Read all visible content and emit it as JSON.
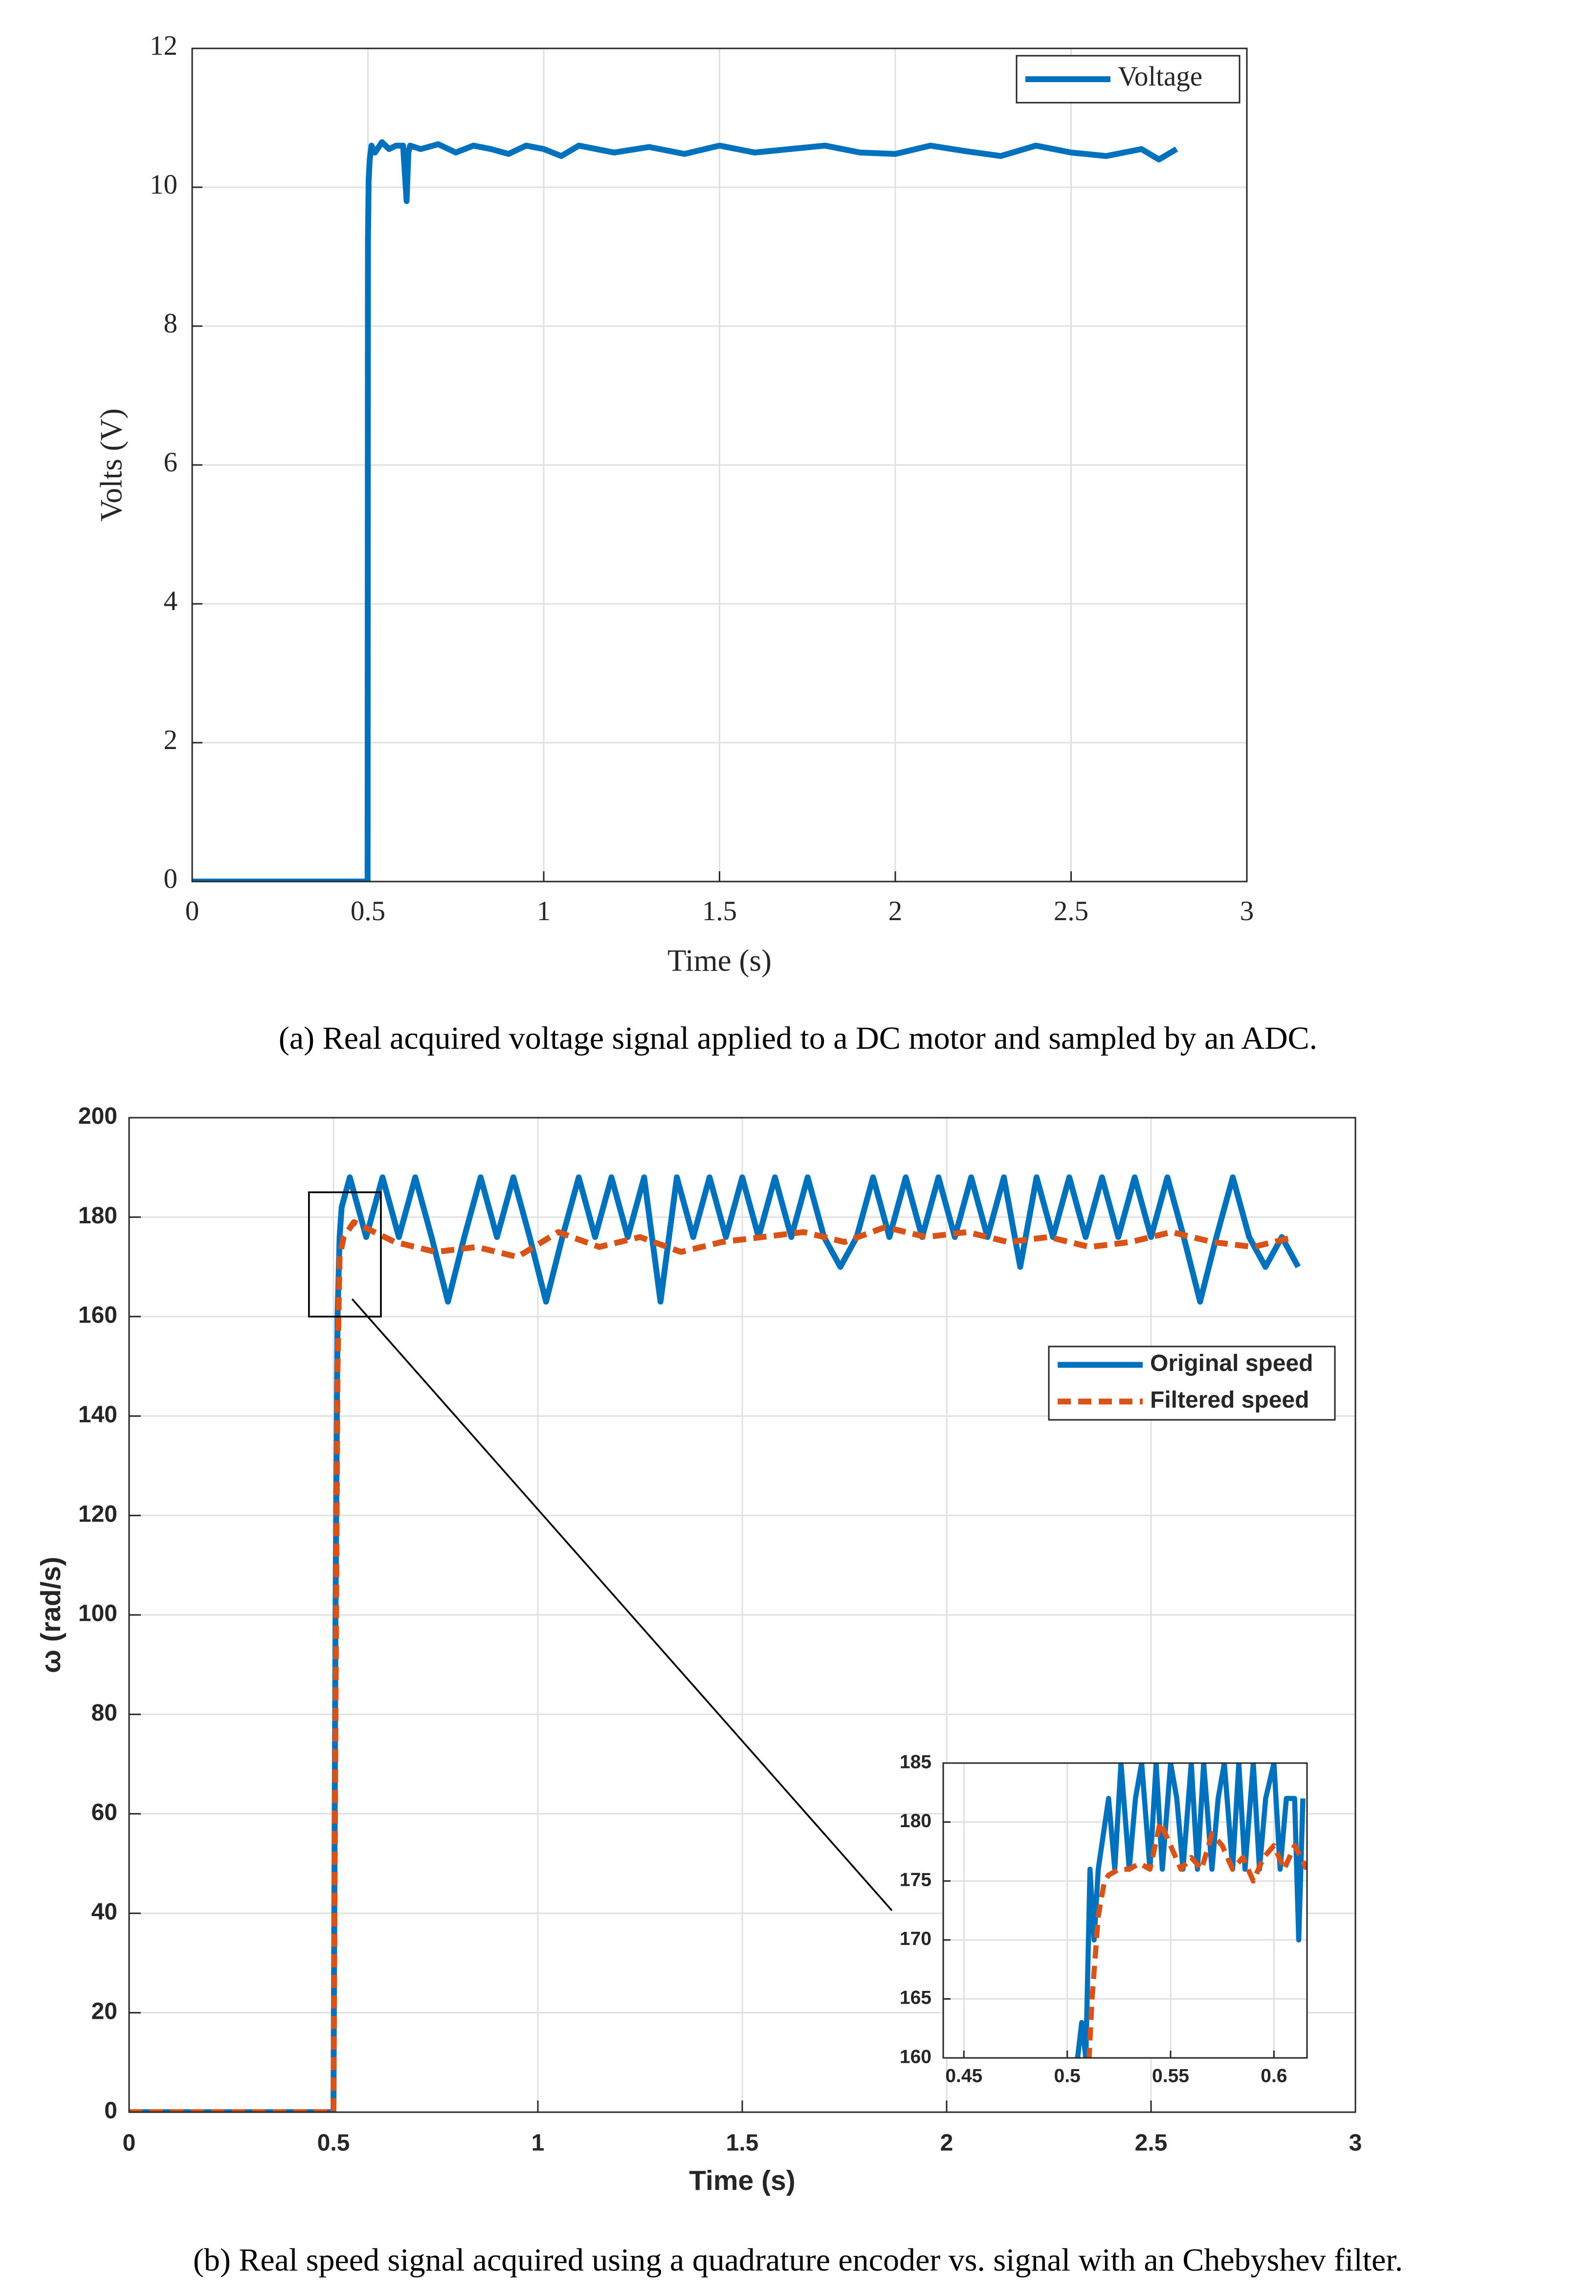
{
  "chart_data": [
    {
      "type": "line",
      "xlabel": "Time (s)",
      "ylabel": "Volts (V)",
      "caption": "(a) Real acquired voltage signal applied to a DC motor and sampled by an ADC.",
      "xlim": [
        0,
        3
      ],
      "ylim": [
        0,
        12
      ],
      "xticks": [
        0,
        0.5,
        1,
        1.5,
        2,
        2.5,
        3
      ],
      "yticks": [
        0,
        2,
        4,
        6,
        8,
        10,
        12
      ],
      "grid": true,
      "legend": "upper right",
      "series": [
        {
          "name": "Voltage",
          "color": "#0072bd",
          "x": [
            0,
            0.499,
            0.5,
            0.502,
            0.505,
            0.51,
            0.52,
            0.54,
            0.56,
            0.58,
            0.6,
            0.605,
            0.61,
            0.615,
            0.62,
            0.65,
            0.7,
            0.75,
            0.8,
            0.85,
            0.9,
            0.95,
            1,
            1.05,
            1.1,
            1.2,
            1.3,
            1.4,
            1.5,
            1.6,
            1.7,
            1.8,
            1.9,
            2,
            2.1,
            2.2,
            2.3,
            2.4,
            2.5,
            2.6,
            2.7,
            2.75,
            2.8
          ],
          "values": [
            0,
            0,
            9.2,
            10.1,
            10.4,
            10.6,
            10.5,
            10.65,
            10.55,
            10.6,
            10.6,
            10.2,
            9.8,
            10.5,
            10.6,
            10.55,
            10.62,
            10.5,
            10.6,
            10.55,
            10.48,
            10.6,
            10.55,
            10.45,
            10.6,
            10.5,
            10.58,
            10.48,
            10.6,
            10.5,
            10.55,
            10.6,
            10.5,
            10.48,
            10.6,
            10.52,
            10.45,
            10.6,
            10.5,
            10.45,
            10.55,
            10.4,
            10.55
          ]
        }
      ]
    },
    {
      "type": "line",
      "xlabel": "Time (s)",
      "ylabel": "ω (rad/s)",
      "caption": "(b) Real speed signal acquired using a quadrature encoder vs. signal with an Chebyshev filter.",
      "xlim": [
        0,
        3
      ],
      "ylim": [
        0,
        200
      ],
      "xticks": [
        0,
        0.5,
        1,
        1.5,
        2,
        2.5,
        3
      ],
      "yticks": [
        0,
        20,
        40,
        60,
        80,
        100,
        120,
        140,
        160,
        180,
        200
      ],
      "grid": true,
      "legend": "upper right",
      "series": [
        {
          "name": "Original speed",
          "color": "#0072bd",
          "x": [
            0,
            0.497,
            0.5,
            0.505,
            0.51,
            0.515,
            0.52,
            0.54,
            0.58,
            0.62,
            0.66,
            0.7,
            0.74,
            0.78,
            0.82,
            0.86,
            0.9,
            0.94,
            0.98,
            1.02,
            1.06,
            1.1,
            1.14,
            1.18,
            1.22,
            1.26,
            1.3,
            1.34,
            1.38,
            1.42,
            1.46,
            1.5,
            1.54,
            1.58,
            1.62,
            1.66,
            1.7,
            1.74,
            1.78,
            1.82,
            1.86,
            1.9,
            1.94,
            1.98,
            2.02,
            2.06,
            2.1,
            2.14,
            2.18,
            2.22,
            2.26,
            2.3,
            2.34,
            2.38,
            2.42,
            2.46,
            2.5,
            2.54,
            2.58,
            2.62,
            2.66,
            2.7,
            2.74,
            2.78,
            2.82,
            2.86
          ],
          "values": [
            0,
            0,
            0,
            100,
            160,
            176,
            182,
            188,
            176,
            188,
            176,
            188,
            176,
            163,
            176,
            188,
            176,
            188,
            176,
            163,
            176,
            188,
            176,
            188,
            176,
            188,
            163,
            188,
            176,
            188,
            176,
            188,
            176,
            188,
            176,
            188,
            176,
            170,
            176,
            188,
            176,
            188,
            176,
            188,
            176,
            188,
            176,
            188,
            170,
            188,
            176,
            188,
            176,
            188,
            176,
            188,
            176,
            188,
            176,
            163,
            176,
            188,
            176,
            170,
            176,
            170
          ]
        },
        {
          "name": "Filtered speed",
          "color": "#d95319",
          "dashed": true,
          "x": [
            0,
            0.5,
            0.505,
            0.51,
            0.515,
            0.525,
            0.55,
            0.65,
            0.75,
            0.85,
            0.95,
            1.05,
            1.15,
            1.25,
            1.35,
            1.45,
            1.55,
            1.65,
            1.75,
            1.85,
            1.95,
            2.05,
            2.15,
            2.25,
            2.35,
            2.45,
            2.55,
            2.65,
            2.75,
            2.85
          ],
          "values": [
            0,
            0,
            80,
            150,
            172,
            176,
            179,
            175,
            173,
            174,
            172,
            177,
            174,
            176,
            173,
            175,
            176,
            177,
            175,
            178,
            176,
            177,
            175,
            176,
            174,
            175,
            177,
            175,
            174,
            176
          ]
        }
      ]
    },
    {
      "type": "line",
      "xlim": [
        0.44,
        0.616
      ],
      "ylim": [
        160,
        185
      ],
      "xticks": [
        0.45,
        0.5,
        0.55,
        0.6
      ],
      "yticks": [
        160,
        165,
        170,
        175,
        180,
        185
      ],
      "grid": true,
      "series": [
        {
          "color": "#0072bd",
          "x": [
            0.505,
            0.507,
            0.509,
            0.511,
            0.513,
            0.515,
            0.52,
            0.523,
            0.526,
            0.53,
            0.533,
            0.536,
            0.54,
            0.543,
            0.546,
            0.55,
            0.553,
            0.556,
            0.56,
            0.563,
            0.566,
            0.57,
            0.573,
            0.576,
            0.58,
            0.583,
            0.586,
            0.59,
            0.593,
            0.596,
            0.6,
            0.603,
            0.606,
            0.608,
            0.61,
            0.612,
            0.614
          ],
          "values": [
            160,
            163,
            160,
            176,
            170,
            176,
            182,
            176,
            185,
            176,
            182,
            185,
            176,
            185,
            176,
            185,
            182,
            176,
            185,
            176,
            185,
            176,
            182,
            185,
            176,
            185,
            176,
            185,
            176,
            182,
            185,
            176,
            182,
            182,
            182,
            170,
            182
          ]
        },
        {
          "color": "#d95319",
          "dashed": true,
          "x": [
            0.51,
            0.512,
            0.515,
            0.518,
            0.52,
            0.525,
            0.53,
            0.535,
            0.54,
            0.545,
            0.55,
            0.555,
            0.56,
            0.565,
            0.57,
            0.575,
            0.58,
            0.585,
            0.59,
            0.595,
            0.6,
            0.605,
            0.61,
            0.616
          ],
          "values": [
            158,
            165,
            172,
            175,
            175.5,
            176,
            176,
            176.5,
            176,
            180,
            178,
            176,
            177,
            176,
            179,
            178,
            176,
            177,
            175,
            177,
            178,
            176,
            178,
            176
          ]
        }
      ]
    }
  ]
}
